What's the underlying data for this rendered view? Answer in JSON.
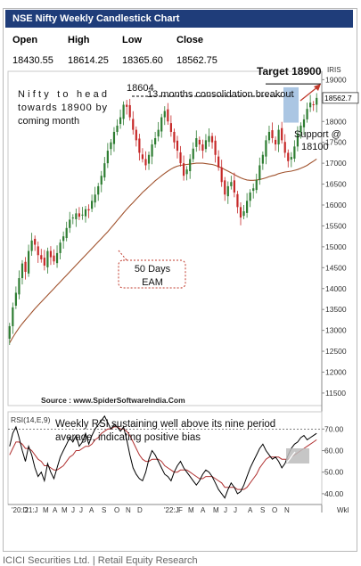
{
  "header": {
    "title": "NSE Nifty Weekly Candlestick Chart",
    "ohlc_labels": [
      "Open",
      "High",
      "Low",
      "Close"
    ],
    "ohlc_values": [
      "18430.55",
      "18614.25",
      "18365.60",
      "18562.75"
    ]
  },
  "footer": {
    "text": "ICICI Securities Ltd. | Retail Equity Research"
  },
  "colors": {
    "title_bg": "#1f3d7a",
    "candle_up": "#2e7d32",
    "candle_down": "#c62828",
    "ema": "#a0522d",
    "rsi": "#000000",
    "rsi_signal": "#b03030",
    "target_arrow": "#c0392b",
    "breakout_box": "#8fb3d9"
  },
  "chart_data": [
    {
      "type": "candlestick",
      "title": "NSE Nifty Weekly Candlestick Chart",
      "series_label": "IRIS",
      "last_price_label": "18562.7",
      "y_ticks": [
        11500,
        12000,
        12500,
        13000,
        13500,
        14000,
        14500,
        15000,
        15500,
        16000,
        16500,
        17000,
        17500,
        18000,
        18500,
        19000
      ],
      "ylim": [
        11200,
        19200
      ],
      "x_tick_labels": [
        "'20:D",
        "'21:J",
        "M",
        "A",
        "M",
        "J",
        "J",
        "A",
        "S",
        "O",
        "N",
        "D",
        "'22:J",
        "F",
        "M",
        "A",
        "M",
        "J",
        "J",
        "A",
        "S",
        "O",
        "N"
      ],
      "x_unit_label": "Wkl",
      "source": "Source : www.SpiderSoftwareIndia.Com",
      "annotations": {
        "outlook": "Nifty to head towards 18900 by coming month",
        "prior_high": "18604",
        "consolidation": "13 months consolidation breakout",
        "target": "Target 18900",
        "support": "Support @ 18100",
        "ema": "50 Days EAM"
      },
      "key_levels": {
        "prior_high": 18604,
        "target": 18900,
        "support": 18100
      },
      "weekly_close": [
        13100,
        13550,
        13900,
        14250,
        14600,
        14400,
        14900,
        15150,
        15050,
        14800,
        14700,
        14550,
        14900,
        14750,
        14650,
        14850,
        15100,
        15250,
        15450,
        15650,
        15700,
        15800,
        15720,
        15770,
        15900,
        15870,
        16100,
        16250,
        16450,
        16700,
        17000,
        17300,
        17500,
        17750,
        17900,
        18100,
        18400,
        18350,
        18100,
        17800,
        17550,
        17250,
        17100,
        16950,
        17200,
        17450,
        17600,
        17800,
        18100,
        18250,
        18000,
        17750,
        17500,
        17300,
        17000,
        16700,
        16850,
        17100,
        17350,
        17600,
        17450,
        17300,
        17550,
        17650,
        17500,
        17200,
        16900,
        16550,
        16250,
        16450,
        16550,
        16300,
        15950,
        15700,
        15850,
        16100,
        16300,
        16400,
        16600,
        16950,
        17200,
        17550,
        17750,
        17600,
        17450,
        17800,
        17550,
        17250,
        17050,
        17150,
        17400,
        17700,
        17900,
        18050,
        18300,
        18450,
        18400,
        18562.75
      ],
      "ema50": [
        12700,
        12830,
        12950,
        13060,
        13160,
        13250,
        13340,
        13430,
        13520,
        13600,
        13680,
        13760,
        13840,
        13920,
        14000,
        14080,
        14160,
        14240,
        14320,
        14400,
        14480,
        14560,
        14640,
        14720,
        14800,
        14880,
        14960,
        15040,
        15120,
        15200,
        15280,
        15360,
        15450,
        15540,
        15630,
        15720,
        15810,
        15900,
        15980,
        16060,
        16140,
        16220,
        16300,
        16370,
        16440,
        16510,
        16580,
        16640,
        16700,
        16760,
        16810,
        16860,
        16900,
        16930,
        16950,
        16960,
        16970,
        16980,
        16990,
        17000,
        17000,
        17000,
        16990,
        16980,
        16970,
        16950,
        16920,
        16890,
        16850,
        16810,
        16770,
        16730,
        16690,
        16650,
        16620,
        16600,
        16590,
        16590,
        16600,
        16610,
        16630,
        16650,
        16680,
        16700,
        16720,
        16750,
        16770,
        16790,
        16800,
        16810,
        16830,
        16850,
        16880,
        16910,
        16950,
        17000,
        17050,
        17100
      ],
      "rsi": {
        "label": "RSI(14,E,9)",
        "annotation": "Weekly RSI sustaining well above its nine period average, indicating positive bias",
        "y_ticks": [
          40,
          50,
          60,
          70
        ],
        "ylim": [
          35,
          78
        ],
        "rsi_values": [
          62,
          68,
          71,
          66,
          60,
          55,
          62,
          58,
          52,
          48,
          50,
          46,
          54,
          50,
          47,
          52,
          57,
          60,
          63,
          66,
          64,
          67,
          62,
          64,
          68,
          63,
          67,
          70,
          72,
          74,
          76,
          73,
          70,
          72,
          71,
          69,
          71,
          65,
          58,
          52,
          49,
          47,
          46,
          50,
          56,
          60,
          58,
          55,
          52,
          49,
          48,
          46,
          50,
          53,
          55,
          52,
          50,
          48,
          46,
          44,
          46,
          49,
          51,
          50,
          48,
          45,
          42,
          40,
          38,
          42,
          45,
          43,
          40,
          41,
          44,
          48,
          52,
          55,
          58,
          61,
          63,
          60,
          58,
          56,
          57,
          55,
          52,
          54,
          58,
          61,
          63,
          64,
          66,
          67,
          65,
          66,
          67,
          68
        ],
        "signal_values": [
          58,
          61,
          64,
          64,
          63,
          61,
          61,
          60,
          58,
          56,
          55,
          53,
          53,
          52,
          51,
          51,
          52,
          53,
          55,
          57,
          58,
          60,
          60,
          61,
          62,
          62,
          63,
          65,
          66,
          68,
          69,
          70,
          70,
          71,
          71,
          70,
          70,
          69,
          67,
          64,
          61,
          58,
          56,
          55,
          55,
          56,
          56,
          56,
          55,
          53,
          52,
          51,
          50,
          50,
          51,
          51,
          51,
          50,
          49,
          48,
          47,
          47,
          48,
          48,
          48,
          47,
          46,
          45,
          43,
          43,
          43,
          43,
          42,
          42,
          42,
          43,
          45,
          47,
          49,
          52,
          54,
          56,
          57,
          57,
          57,
          57,
          56,
          56,
          56,
          57,
          58,
          59,
          60,
          61,
          62,
          63,
          64,
          65
        ]
      }
    }
  ]
}
